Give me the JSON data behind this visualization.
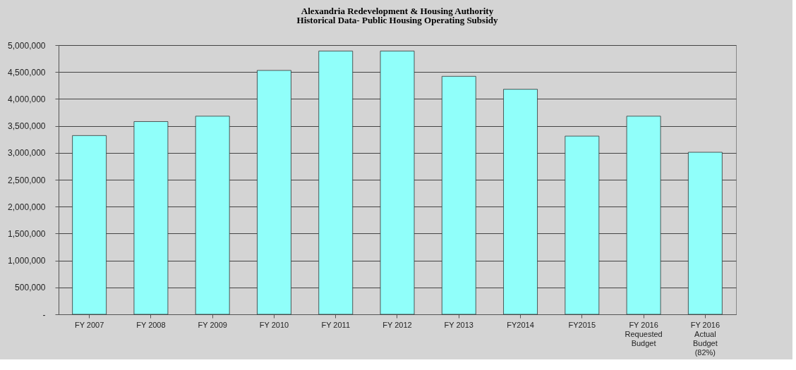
{
  "chart_data": {
    "type": "bar",
    "title": "Alexandria Redevelopment & Housing Authority",
    "subtitle": "Historical Data- Public Housing Operating Subsidy",
    "categories": [
      "FY 2007",
      "FY 2008",
      "FY 2009",
      "FY 2010",
      "FY 2011",
      "FY 2012",
      "FY 2013",
      "FY2014",
      "FY2015",
      "FY 2016\nRequested\nBudget",
      "FY 2016\nActual\nBudget\n(82%)"
    ],
    "values": [
      3320000,
      3580000,
      3680000,
      4530000,
      4890000,
      4890000,
      4420000,
      4180000,
      3310000,
      3680000,
      3010000
    ],
    "color": "#90fffa",
    "ylim": [
      0,
      5000000
    ],
    "yticks": [
      {
        "value": 0,
        "label": "-"
      },
      {
        "value": 500000,
        "label": "500,000"
      },
      {
        "value": 1000000,
        "label": "1,000,000"
      },
      {
        "value": 1500000,
        "label": "1,500,000"
      },
      {
        "value": 2000000,
        "label": "2,000,000"
      },
      {
        "value": 2500000,
        "label": "2,500,000"
      },
      {
        "value": 3000000,
        "label": "3,000,000"
      },
      {
        "value": 3500000,
        "label": "3,500,000"
      },
      {
        "value": 4000000,
        "label": "4,000,000"
      },
      {
        "value": 4500000,
        "label": "4,500,000"
      },
      {
        "value": 5000000,
        "label": "5,000,000"
      }
    ],
    "grid": "y"
  }
}
